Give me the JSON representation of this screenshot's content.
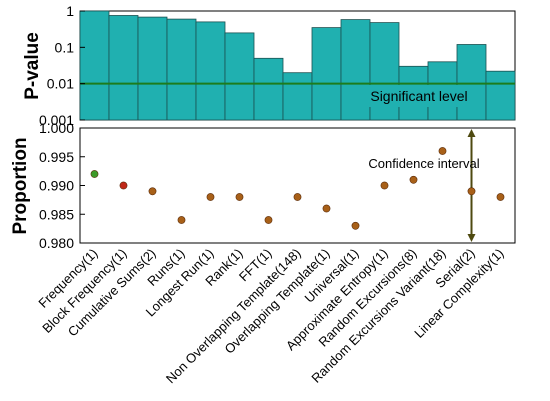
{
  "chart_data": [
    {
      "type": "bar",
      "ylabel": "P-value",
      "yscale": "log",
      "ylim": [
        0.001,
        1
      ],
      "yticks": [
        "0.001",
        "0.01",
        "0.1",
        "1"
      ],
      "categories": [
        "Frequency(1)",
        "Block Frequency(1)",
        "Cumulative Sums(2)",
        "Runs(1)",
        "Longest Run(1)",
        "Rank(1)",
        "FFT(1)",
        "Non Overlapping Template(148)",
        "Overlapping Template(1)",
        "Universal(1)",
        "Approximate Entropy(1)",
        "Random Excursions(8)",
        "Random Excursions Variant(18)",
        "Serial(2)",
        "Linear Complexity(1)"
      ],
      "values": [
        1.0,
        0.75,
        0.68,
        0.6,
        0.5,
        0.25,
        0.05,
        0.02,
        0.35,
        0.58,
        0.48,
        0.03,
        0.04,
        0.12,
        0.022
      ],
      "threshold": 0.01,
      "threshold_label": "Significant level",
      "bar_color": "#20b0b0",
      "threshold_color": "#1c7c1c"
    },
    {
      "type": "scatter",
      "ylabel": "Proportion",
      "ylim": [
        0.98,
        1.0
      ],
      "yticks": [
        "0.980",
        "0.985",
        "0.990",
        "0.995",
        "1.000"
      ],
      "categories": [
        "Frequency(1)",
        "Block Frequency(1)",
        "Cumulative Sums(2)",
        "Runs(1)",
        "Longest Run(1)",
        "Rank(1)",
        "FFT(1)",
        "Non Overlapping Template(148)",
        "Overlapping Template(1)",
        "Universal(1)",
        "Approximate Entropy(1)",
        "Random Excursions(8)",
        "Random Excursions Variant(18)",
        "Serial(2)",
        "Linear Complexity(1)"
      ],
      "values": [
        0.992,
        0.99,
        0.989,
        0.984,
        0.988,
        0.988,
        0.984,
        0.988,
        0.986,
        0.983,
        0.99,
        0.991,
        0.996,
        0.989,
        0.988
      ],
      "point_colors": [
        "#3c9a28",
        "#c02818",
        "#a86018",
        "#a86018",
        "#a86018",
        "#a86018",
        "#a86018",
        "#a86018",
        "#a86018",
        "#a86018",
        "#a86018",
        "#a86018",
        "#a86018",
        "#a86018",
        "#a86018"
      ],
      "interval": [
        0.98,
        1.0
      ],
      "interval_label": "Confidence interval",
      "interval_color": "#4e4a10"
    }
  ]
}
